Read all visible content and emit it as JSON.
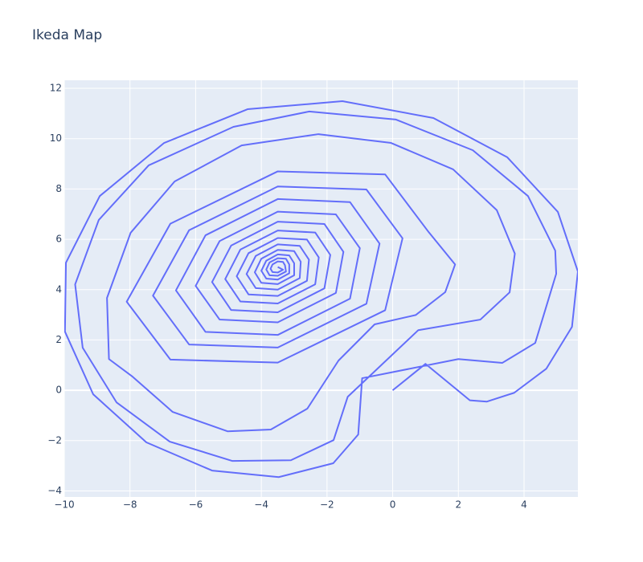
{
  "chart_data": {
    "type": "line",
    "title": "Ikeda Map",
    "color": "#636efa",
    "grid": true,
    "x": [
      0,
      1,
      2.35,
      2.87,
      3.7,
      4.68,
      5.46,
      5.64,
      5.03,
      3.49,
      1.24,
      -1.53,
      -4.42,
      -6.96,
      -8.92,
      -9.95,
      -9.98,
      -9.12,
      -7.5,
      -5.5,
      -3.47,
      -1.81,
      -1.05,
      -0.93,
      2.0,
      3.34,
      4.34,
      4.98,
      4.95,
      4.12,
      2.44,
      0.1,
      -2.54,
      -4.85,
      -7.43,
      -8.95,
      -9.67,
      -9.44,
      -8.41,
      -6.79,
      -4.88,
      -3.1,
      -1.8,
      -1.37,
      0.78,
      2.67,
      3.56,
      3.72,
      3.17,
      1.84,
      -0.05,
      -2.26,
      -4.6,
      -6.64,
      -7.98,
      -8.7,
      -8.64,
      -7.92,
      -6.7,
      -5.03,
      -3.71,
      -2.6,
      -1.65,
      -0.55,
      0.7,
      1.6,
      1.9,
      1.1,
      -0.23,
      -3.5,
      -6.77,
      -8.1,
      -6.77,
      -3.5,
      -0.23,
      0.3,
      -0.8,
      -3.5,
      -6.2,
      -7.3,
      -6.2,
      -3.5,
      -0.8,
      -0.4,
      -1.3,
      -3.5,
      -5.7,
      -6.6,
      -5.7,
      -3.5,
      -1.3,
      -1.0,
      -1.73,
      -3.5,
      -5.27,
      -6.0,
      -5.27,
      -3.5,
      -1.73,
      -1.5,
      -2.08,
      -3.5,
      -4.92,
      -5.5,
      -4.92,
      -3.5,
      -2.08,
      -1.9,
      -2.36,
      -3.5,
      -4.64,
      -5.1,
      -4.64,
      -3.5,
      -2.36,
      -2.25,
      -2.61,
      -3.5,
      -4.39,
      -4.75,
      -4.39,
      -3.5,
      -2.61,
      -2.55,
      -2.83,
      -3.5,
      -4.17,
      -4.45,
      -4.17,
      -3.5,
      -2.83,
      -2.8,
      -3.0,
      -3.5,
      -4.0,
      -4.2,
      -4.0,
      -3.5,
      -3.0,
      -3.0,
      -3.15,
      -3.5,
      -3.85,
      -4.0,
      -3.85,
      -3.5,
      -3.15,
      -3.15,
      -3.25,
      -3.5,
      -3.75,
      -3.85,
      -3.75,
      -3.5,
      -3.25,
      -3.28,
      -3.34,
      -3.5,
      -3.66,
      -3.72,
      -3.66,
      -3.5,
      -3.34,
      -3.5
    ],
    "values": [
      0,
      1.05,
      -0.4,
      -0.45,
      -0.1,
      0.86,
      2.52,
      4.72,
      7.09,
      9.26,
      10.82,
      11.49,
      11.17,
      9.83,
      7.72,
      5.07,
      2.33,
      -0.16,
      -2.07,
      -3.19,
      -3.45,
      -2.9,
      -1.76,
      0.48,
      1.24,
      1.09,
      1.88,
      4.63,
      5.55,
      7.72,
      9.54,
      10.76,
      11.08,
      10.47,
      8.94,
      6.77,
      4.21,
      1.69,
      -0.48,
      -2.04,
      -2.81,
      -2.78,
      -1.98,
      -0.26,
      2.39,
      2.81,
      3.89,
      5.43,
      7.16,
      8.78,
      9.83,
      10.18,
      9.73,
      8.3,
      6.26,
      3.67,
      1.24,
      0.54,
      -0.86,
      -1.63,
      -1.56,
      -0.73,
      1.18,
      2.62,
      2.99,
      3.9,
      5.0,
      6.28,
      8.58,
      8.7,
      6.62,
      3.52,
      1.22,
      1.1,
      3.18,
      6.04,
      7.98,
      8.1,
      6.36,
      3.76,
      1.82,
      1.7,
      3.44,
      5.83,
      7.48,
      7.6,
      6.16,
      3.97,
      2.32,
      2.2,
      3.64,
      5.65,
      6.99,
      7.1,
      5.93,
      4.15,
      2.81,
      2.7,
      3.87,
      5.5,
      6.61,
      6.7,
      5.75,
      4.3,
      3.19,
      3.1,
      4.05,
      5.38,
      6.27,
      6.35,
      5.59,
      4.42,
      3.53,
      3.45,
      4.21,
      5.28,
      5.99,
      6.05,
      5.45,
      4.53,
      3.81,
      3.75,
      4.35,
      5.19,
      5.74,
      5.8,
      5.34,
      4.62,
      4.06,
      4.0,
      4.46,
      5.11,
      5.53,
      5.58,
      5.23,
      4.69,
      4.27,
      4.22,
      4.57,
      5.05,
      5.36,
      5.4,
      5.15,
      4.75,
      4.44,
      4.4,
      4.65,
      5.0,
      5.23,
      5.25,
      5.08,
      4.8,
      4.57,
      4.55,
      4.72,
      4.97,
      5.1,
      5.12,
      5.0,
      4.83,
      4.7,
      4.68,
      4.79,
      4.9
    ],
    "xlim": [
      -10,
      5.64
    ],
    "ylim": [
      -4.24,
      12.32
    ],
    "xticks": [
      {
        "value": -10,
        "label": "−10"
      },
      {
        "value": -8,
        "label": "−8"
      },
      {
        "value": -6,
        "label": "−6"
      },
      {
        "value": -4,
        "label": "−4"
      },
      {
        "value": -2,
        "label": "−2"
      },
      0,
      2,
      4
    ],
    "yticks": [
      {
        "value": -4,
        "label": "−4"
      },
      {
        "value": -2,
        "label": "−2"
      },
      0,
      2,
      4,
      6,
      8,
      10,
      12
    ]
  }
}
